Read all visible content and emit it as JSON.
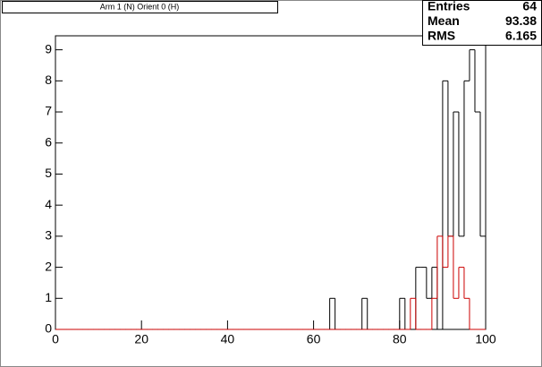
{
  "chart_data": {
    "type": "histogram",
    "title": "Arm 1 (N) Orient 0 (H)",
    "bins": [
      0,
      1.25,
      2.5,
      3.75,
      5,
      6.25,
      7.5,
      8.75,
      10,
      11.25,
      12.5,
      13.75,
      15,
      16.25,
      17.5,
      18.75,
      20,
      21.25,
      22.5,
      23.75,
      25,
      26.25,
      27.5,
      28.75,
      30,
      31.25,
      32.5,
      33.75,
      35,
      36.25,
      37.5,
      38.75,
      40,
      41.25,
      42.5,
      43.75,
      45,
      46.25,
      47.5,
      48.75,
      50,
      51.25,
      52.5,
      53.75,
      55,
      56.25,
      57.5,
      58.75,
      60,
      61.25,
      62.5,
      63.75,
      65,
      66.25,
      67.5,
      68.75,
      70,
      71.25,
      72.5,
      73.75,
      75,
      76.25,
      77.5,
      78.75,
      80,
      81.25,
      82.5,
      83.75,
      85,
      86.25,
      87.5,
      88.75,
      90,
      91.25,
      92.5,
      93.75,
      95,
      96.25,
      97.5,
      98.75,
      100
    ],
    "series": [
      {
        "color": "#000000",
        "values": [
          0,
          0,
          0,
          0,
          0,
          0,
          0,
          0,
          0,
          0,
          0,
          0,
          0,
          0,
          0,
          0,
          0,
          0,
          0,
          0,
          0,
          0,
          0,
          0,
          0,
          0,
          0,
          0,
          0,
          0,
          0,
          0,
          0,
          0,
          0,
          0,
          0,
          0,
          0,
          0,
          0,
          0,
          0,
          0,
          0,
          0,
          0,
          0,
          0,
          0,
          0,
          1,
          0,
          0,
          0,
          0,
          0,
          1,
          0,
          0,
          0,
          0,
          0,
          0,
          1,
          0,
          0,
          2,
          2,
          1,
          2,
          0,
          8,
          3,
          7,
          3,
          8,
          9,
          7,
          3
        ]
      },
      {
        "color": "#cc0000",
        "values": [
          0,
          0,
          0,
          0,
          0,
          0,
          0,
          0,
          0,
          0,
          0,
          0,
          0,
          0,
          0,
          0,
          0,
          0,
          0,
          0,
          0,
          0,
          0,
          0,
          0,
          0,
          0,
          0,
          0,
          0,
          0,
          0,
          0,
          0,
          0,
          0,
          0,
          0,
          0,
          0,
          0,
          0,
          0,
          0,
          0,
          0,
          0,
          0,
          0,
          0,
          0,
          0,
          0,
          0,
          0,
          0,
          0,
          0,
          0,
          0,
          0,
          0,
          0,
          0,
          0,
          0,
          1,
          0,
          0,
          0,
          1,
          3,
          2,
          3,
          1,
          2,
          1,
          0,
          0,
          0
        ]
      }
    ],
    "xlim": [
      0,
      100
    ],
    "xticks": [
      0,
      20,
      40,
      60,
      80,
      100
    ],
    "ylim": [
      0,
      9.45
    ],
    "yticks": [
      0,
      1,
      2,
      3,
      4,
      5,
      6,
      7,
      8,
      9
    ],
    "stats": [
      {
        "label": "Entries",
        "value": 64
      },
      {
        "label": "Mean",
        "value": 93.38
      },
      {
        "label": "RMS",
        "value": 6.165
      }
    ]
  }
}
